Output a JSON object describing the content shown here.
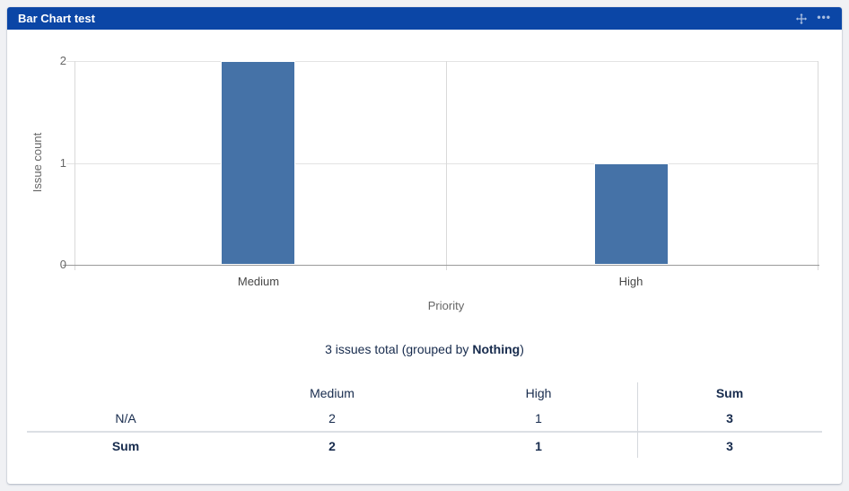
{
  "widget": {
    "title": "Bar Chart test",
    "icons": [
      "move-icon",
      "more-options-icon"
    ],
    "more_glyph": "•••"
  },
  "colors": {
    "header_bg": "#0b46a6",
    "bar": "#4572A7",
    "gridline": "#e3e3e3",
    "axis_baseline": "#9a9a9a",
    "text_dark": "#172b4d",
    "text_muted": "#666666",
    "card_bg": "#ffffff",
    "page_bg": "#f0f1f4"
  },
  "chart_data": {
    "type": "bar",
    "categories": [
      "Medium",
      "High"
    ],
    "values": [
      2,
      1
    ],
    "title": "",
    "xlabel": "Priority",
    "ylabel": "Issue count",
    "ylim": [
      0,
      2
    ],
    "yticks": [
      0,
      1,
      2
    ],
    "grid": true,
    "legend": "none",
    "bar_color": "#4572A7"
  },
  "summary": {
    "prefix": "3 issues total (grouped by ",
    "group": "Nothing",
    "suffix": ")"
  },
  "table": {
    "headers": [
      "",
      "Medium",
      "High",
      "Sum"
    ],
    "rows": [
      {
        "label": "N/A",
        "values": [
          "2",
          "1",
          "3"
        ]
      },
      {
        "label": "Sum",
        "values": [
          "2",
          "1",
          "3"
        ]
      }
    ]
  }
}
